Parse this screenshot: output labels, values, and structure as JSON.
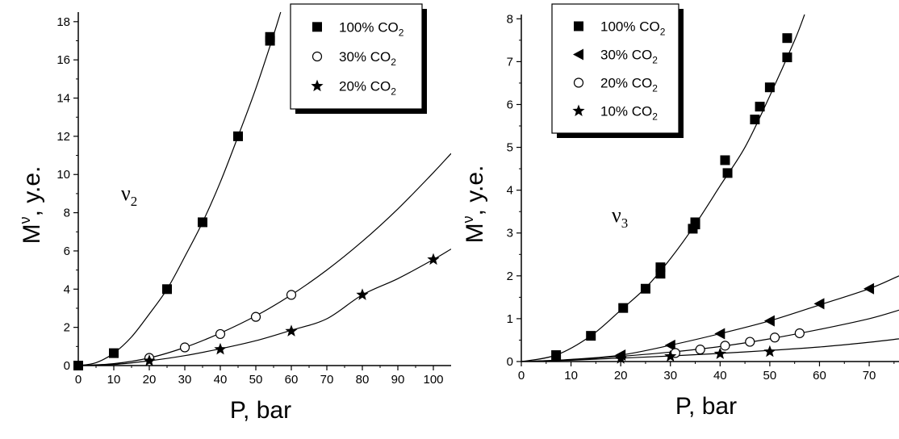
{
  "chart_data": [
    {
      "type": "scatter",
      "xlabel": "P, bar",
      "ylabel": "M",
      "ylabel_sup": "ν",
      "ylabel_suffix": ", y.e.",
      "xlim": [
        0,
        105
      ],
      "ylim": [
        0,
        18.5
      ],
      "xticks": [
        0,
        10,
        20,
        30,
        40,
        50,
        60,
        70,
        80,
        90,
        100
      ],
      "yticks": [
        0,
        2,
        4,
        6,
        8,
        10,
        12,
        14,
        16,
        18
      ],
      "grid": false,
      "legend_position": "top-right",
      "annotation": {
        "text": "ν",
        "sub": "2"
      },
      "series": [
        {
          "name": "100% CO2",
          "label_main": "100% CO",
          "label_sub": "2",
          "marker": "square",
          "x": [
            0,
            10,
            25,
            35,
            45,
            54,
            54
          ],
          "y": [
            0,
            0.65,
            4.0,
            7.5,
            12.0,
            17.0,
            17.2
          ]
        },
        {
          "name": "30% CO2",
          "label_main": "30% CO",
          "label_sub": "2",
          "marker": "circle",
          "x": [
            20,
            30,
            40,
            50,
            60
          ],
          "y": [
            0.4,
            0.95,
            1.65,
            2.55,
            3.7
          ]
        },
        {
          "name": "20% CO2",
          "label_main": "20% CO",
          "label_sub": "2",
          "marker": "star",
          "x": [
            20,
            40,
            60,
            80,
            100
          ],
          "y": [
            0.25,
            0.85,
            1.8,
            3.7,
            5.55
          ]
        }
      ],
      "fits": [
        {
          "x": [
            0,
            5,
            10,
            15,
            20,
            25,
            30,
            35,
            40,
            45,
            50,
            55,
            57
          ],
          "y": [
            0,
            0.15,
            0.65,
            1.5,
            2.7,
            4.0,
            5.7,
            7.5,
            9.6,
            12.0,
            14.5,
            17.3,
            18.5
          ]
        },
        {
          "x": [
            0,
            10,
            20,
            30,
            40,
            50,
            60,
            70,
            80,
            90,
            100,
            105
          ],
          "y": [
            0,
            0.1,
            0.4,
            0.95,
            1.7,
            2.6,
            3.7,
            5.0,
            6.5,
            8.2,
            10.1,
            11.1
          ]
        },
        {
          "x": [
            0,
            10,
            20,
            30,
            40,
            50,
            60,
            70,
            80,
            90,
            100,
            105
          ],
          "y": [
            0,
            0.06,
            0.25,
            0.52,
            0.88,
            1.3,
            1.85,
            2.45,
            3.7,
            4.55,
            5.55,
            6.1
          ]
        }
      ]
    },
    {
      "type": "scatter",
      "xlabel": "P, bar",
      "ylabel": "M",
      "ylabel_sup": "ν",
      "ylabel_suffix": ", y.e.",
      "xlim": [
        0,
        76
      ],
      "ylim": [
        0,
        8.1
      ],
      "xticks": [
        0,
        10,
        20,
        30,
        40,
        50,
        60,
        70
      ],
      "yticks": [
        0,
        1,
        2,
        3,
        4,
        5,
        6,
        7,
        8
      ],
      "grid": false,
      "legend_position": "top-left",
      "annotation": {
        "text": "ν",
        "sub": "3"
      },
      "series": [
        {
          "name": "100% CO2",
          "label_main": "100% CO",
          "label_sub": "2",
          "marker": "square",
          "x": [
            7,
            14,
            20.5,
            25,
            28,
            28,
            34.5,
            35,
            35,
            41,
            41.5,
            47,
            48,
            50,
            53.5,
            53.5
          ],
          "y": [
            0.15,
            0.6,
            1.25,
            1.7,
            2.05,
            2.2,
            3.1,
            3.2,
            3.25,
            4.7,
            4.4,
            5.65,
            5.95,
            6.4,
            7.1,
            7.55
          ]
        },
        {
          "name": "30% CO2",
          "label_main": "30% CO",
          "label_sub": "2",
          "marker": "triangle-left",
          "x": [
            20,
            30,
            40,
            50,
            60,
            70
          ],
          "y": [
            0.15,
            0.38,
            0.65,
            0.95,
            1.35,
            1.7
          ]
        },
        {
          "name": "20% CO2",
          "label_main": "20% CO",
          "label_sub": "2",
          "marker": "circle",
          "x": [
            31,
            36,
            41,
            46,
            51,
            56
          ],
          "y": [
            0.2,
            0.28,
            0.37,
            0.46,
            0.56,
            0.66
          ]
        },
        {
          "name": "10% CO2",
          "label_main": "10% CO",
          "label_sub": "2",
          "marker": "star",
          "x": [
            20,
            30,
            40,
            50
          ],
          "y": [
            0.07,
            0.12,
            0.18,
            0.23
          ]
        }
      ],
      "fits": [
        {
          "x": [
            0,
            7,
            14,
            20,
            25,
            30,
            35,
            40,
            45,
            50,
            55,
            57
          ],
          "y": [
            0,
            0.15,
            0.6,
            1.2,
            1.72,
            2.4,
            3.2,
            4.1,
            5.0,
            6.2,
            7.5,
            8.1
          ]
        },
        {
          "x": [
            0,
            10,
            20,
            30,
            40,
            50,
            60,
            70,
            76
          ],
          "y": [
            0,
            0.05,
            0.15,
            0.38,
            0.65,
            0.95,
            1.32,
            1.7,
            2.0
          ]
        },
        {
          "x": [
            0,
            10,
            20,
            30,
            40,
            50,
            60,
            70,
            76
          ],
          "y": [
            0,
            0.04,
            0.12,
            0.22,
            0.35,
            0.53,
            0.75,
            1.0,
            1.2
          ]
        },
        {
          "x": [
            0,
            10,
            20,
            30,
            40,
            50,
            60,
            70,
            76
          ],
          "y": [
            0,
            0.03,
            0.08,
            0.13,
            0.19,
            0.26,
            0.34,
            0.45,
            0.53
          ]
        }
      ]
    }
  ]
}
